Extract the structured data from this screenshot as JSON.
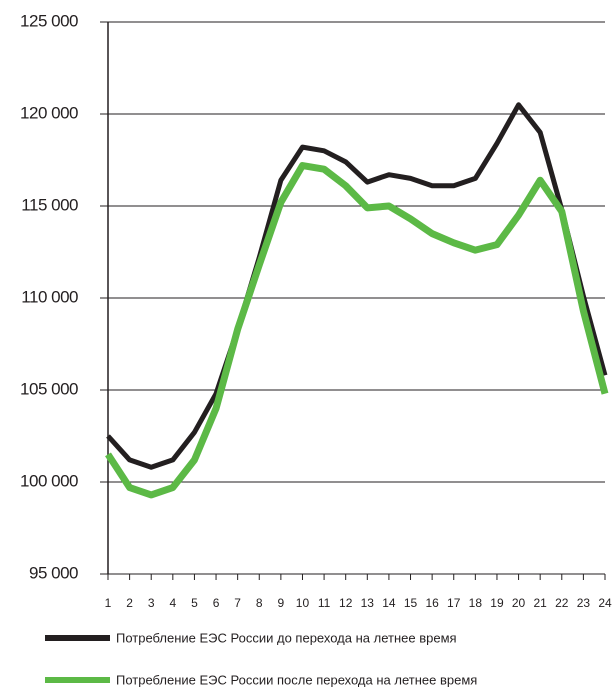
{
  "chart_data": {
    "type": "line",
    "categories": [
      "1",
      "2",
      "3",
      "4",
      "5",
      "6",
      "7",
      "8",
      "9",
      "10",
      "11",
      "12",
      "13",
      "14",
      "15",
      "16",
      "17",
      "18",
      "19",
      "20",
      "21",
      "22",
      "23",
      "24"
    ],
    "series": [
      {
        "name": "Потребление ЕЭС России до перехода на летнее время",
        "color": "#231f20",
        "values": [
          102500,
          101200,
          100800,
          101200,
          102700,
          104800,
          108300,
          112200,
          116400,
          118200,
          118000,
          117400,
          116300,
          116700,
          116500,
          116100,
          116100,
          116500,
          118400,
          120500,
          119000,
          114800,
          110100,
          105800
        ]
      },
      {
        "name": "Потребление ЕЭС России после перехода на летнее время",
        "color": "#5cb946",
        "values": [
          101500,
          99700,
          99300,
          99700,
          101200,
          104000,
          108300,
          111800,
          115200,
          117200,
          117000,
          116100,
          114900,
          115000,
          114300,
          113500,
          113000,
          112600,
          112900,
          114500,
          116400,
          114700,
          109300,
          104800
        ]
      }
    ],
    "ylim": [
      95000,
      125000
    ],
    "yticks": [
      {
        "value": 95000,
        "label": "95 000"
      },
      {
        "value": 100000,
        "label": "100 000"
      },
      {
        "value": 105000,
        "label": "105 000"
      },
      {
        "value": 110000,
        "label": "110 000"
      },
      {
        "value": 115000,
        "label": "115 000"
      },
      {
        "value": 120000,
        "label": "120 000"
      },
      {
        "value": 125000,
        "label": "125 000"
      }
    ],
    "grid": true
  }
}
